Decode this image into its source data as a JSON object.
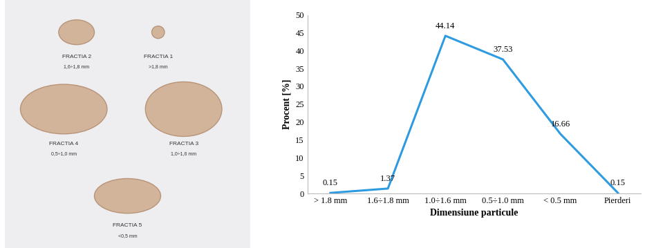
{
  "chart_data": {
    "type": "line",
    "categories": [
      "> 1.8 mm",
      "1.6÷1.8 mm",
      "1.0÷1.6 mm",
      "0.5÷1.0 mm",
      "< 0.5 mm",
      "Pierderi"
    ],
    "values": [
      0.15,
      1.37,
      44.14,
      37.53,
      16.66,
      0.15
    ],
    "color": "#2e9be0",
    "x_label": "Dimensiune particule",
    "y_label": "Procent [%]",
    "ylim": [
      0,
      50
    ],
    "yticks": [
      0,
      5,
      10,
      15,
      20,
      25,
      30,
      35,
      40,
      45,
      50
    ],
    "grid": false,
    "data_labels": true
  },
  "photo": {
    "fractions": [
      {
        "name": "FRACTIA 2",
        "size": "1,6÷1,8 mm"
      },
      {
        "name": "FRACTIA 1",
        "size": ">1,8 mm"
      },
      {
        "name": "FRACTIA 4",
        "size": "0,5÷1,0 mm"
      },
      {
        "name": "FRACTIA 3",
        "size": "1,0÷1,6 mm"
      },
      {
        "name": "FRACTIA 5",
        "size": "<0,5 mm"
      }
    ]
  }
}
